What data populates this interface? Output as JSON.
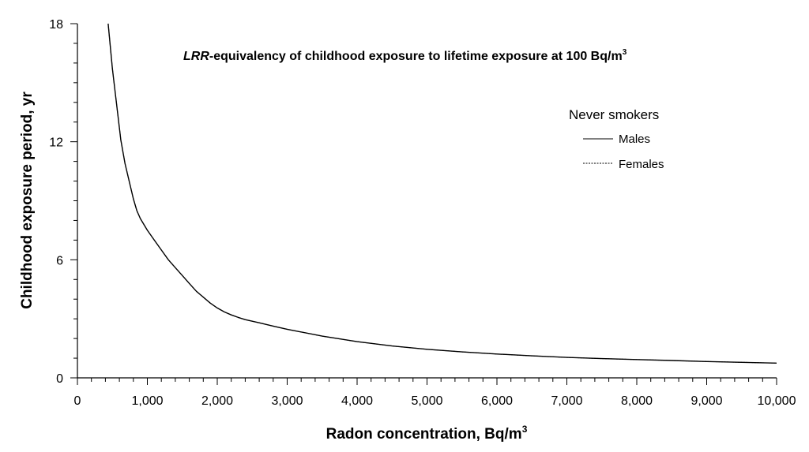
{
  "chart_data": {
    "type": "line",
    "title_prefix": "LRR",
    "title_main": "-equivalency of childhood exposure to lifetime exposure at 100 Bq/m",
    "title_sup": "3",
    "xlabel_main": "Radon concentration, Bq/m",
    "xlabel_sup": "3",
    "ylabel": "Childhood exposure period, yr",
    "xlim": [
      0,
      10000
    ],
    "ylim": [
      0,
      18
    ],
    "x_ticks": [
      0,
      1000,
      2000,
      3000,
      4000,
      5000,
      6000,
      7000,
      8000,
      9000,
      10000
    ],
    "x_tick_labels": [
      "0",
      "1,000",
      "2,000",
      "3,000",
      "4,000",
      "5,000",
      "6,000",
      "7,000",
      "8,000",
      "9,000",
      "10,000"
    ],
    "x_minor_step": 200,
    "y_ticks": [
      0,
      6,
      12,
      18
    ],
    "y_tick_labels": [
      "0",
      "6",
      "12",
      "18"
    ],
    "y_minor_step": 1,
    "legend_title": "Never smokers",
    "legend_position": "upper-right",
    "series": [
      {
        "name": "Males",
        "style": "solid",
        "color": "#000000",
        "x": [
          440,
          500,
          560,
          620,
          680,
          740,
          800,
          850,
          900,
          1000,
          1100,
          1200,
          1300,
          1400,
          1500,
          1600,
          1700,
          1800,
          1900,
          2000,
          2100,
          2200,
          2300,
          2400,
          2600,
          2800,
          3000,
          3500,
          4000,
          4500,
          5000,
          5500,
          6000,
          6500,
          7000,
          7500,
          8000,
          8500,
          9000,
          9500,
          10000
        ],
        "y": [
          18.0,
          15.7,
          13.9,
          12.1,
          10.9,
          10.0,
          9.1,
          8.5,
          8.1,
          7.5,
          7.0,
          6.5,
          6.0,
          5.6,
          5.2,
          4.8,
          4.4,
          4.1,
          3.8,
          3.55,
          3.35,
          3.2,
          3.07,
          2.96,
          2.8,
          2.63,
          2.47,
          2.12,
          1.84,
          1.62,
          1.45,
          1.32,
          1.21,
          1.12,
          1.04,
          0.98,
          0.93,
          0.88,
          0.83,
          0.79,
          0.75
        ]
      },
      {
        "name": "Females",
        "style": "dotted",
        "color": "#000000",
        "x": [
          440,
          500,
          560,
          620,
          680,
          740,
          800,
          850,
          900,
          1000,
          1100,
          1200,
          1300,
          1400,
          1500,
          1600,
          1700,
          1800,
          1900,
          2000,
          2100,
          2200,
          2300,
          2400,
          2600,
          2800,
          3000,
          3500,
          4000,
          4500,
          5000,
          5500,
          6000,
          6500,
          7000,
          7500,
          8000,
          8500,
          9000,
          9500,
          10000
        ],
        "y": [
          18.0,
          15.7,
          13.9,
          12.1,
          10.9,
          10.0,
          9.1,
          8.5,
          8.1,
          7.5,
          7.0,
          6.5,
          6.0,
          5.6,
          5.2,
          4.8,
          4.4,
          4.1,
          3.8,
          3.55,
          3.35,
          3.2,
          3.07,
          2.96,
          2.8,
          2.63,
          2.47,
          2.12,
          1.84,
          1.62,
          1.45,
          1.32,
          1.21,
          1.12,
          1.04,
          0.98,
          0.93,
          0.88,
          0.83,
          0.79,
          0.75
        ]
      }
    ]
  }
}
